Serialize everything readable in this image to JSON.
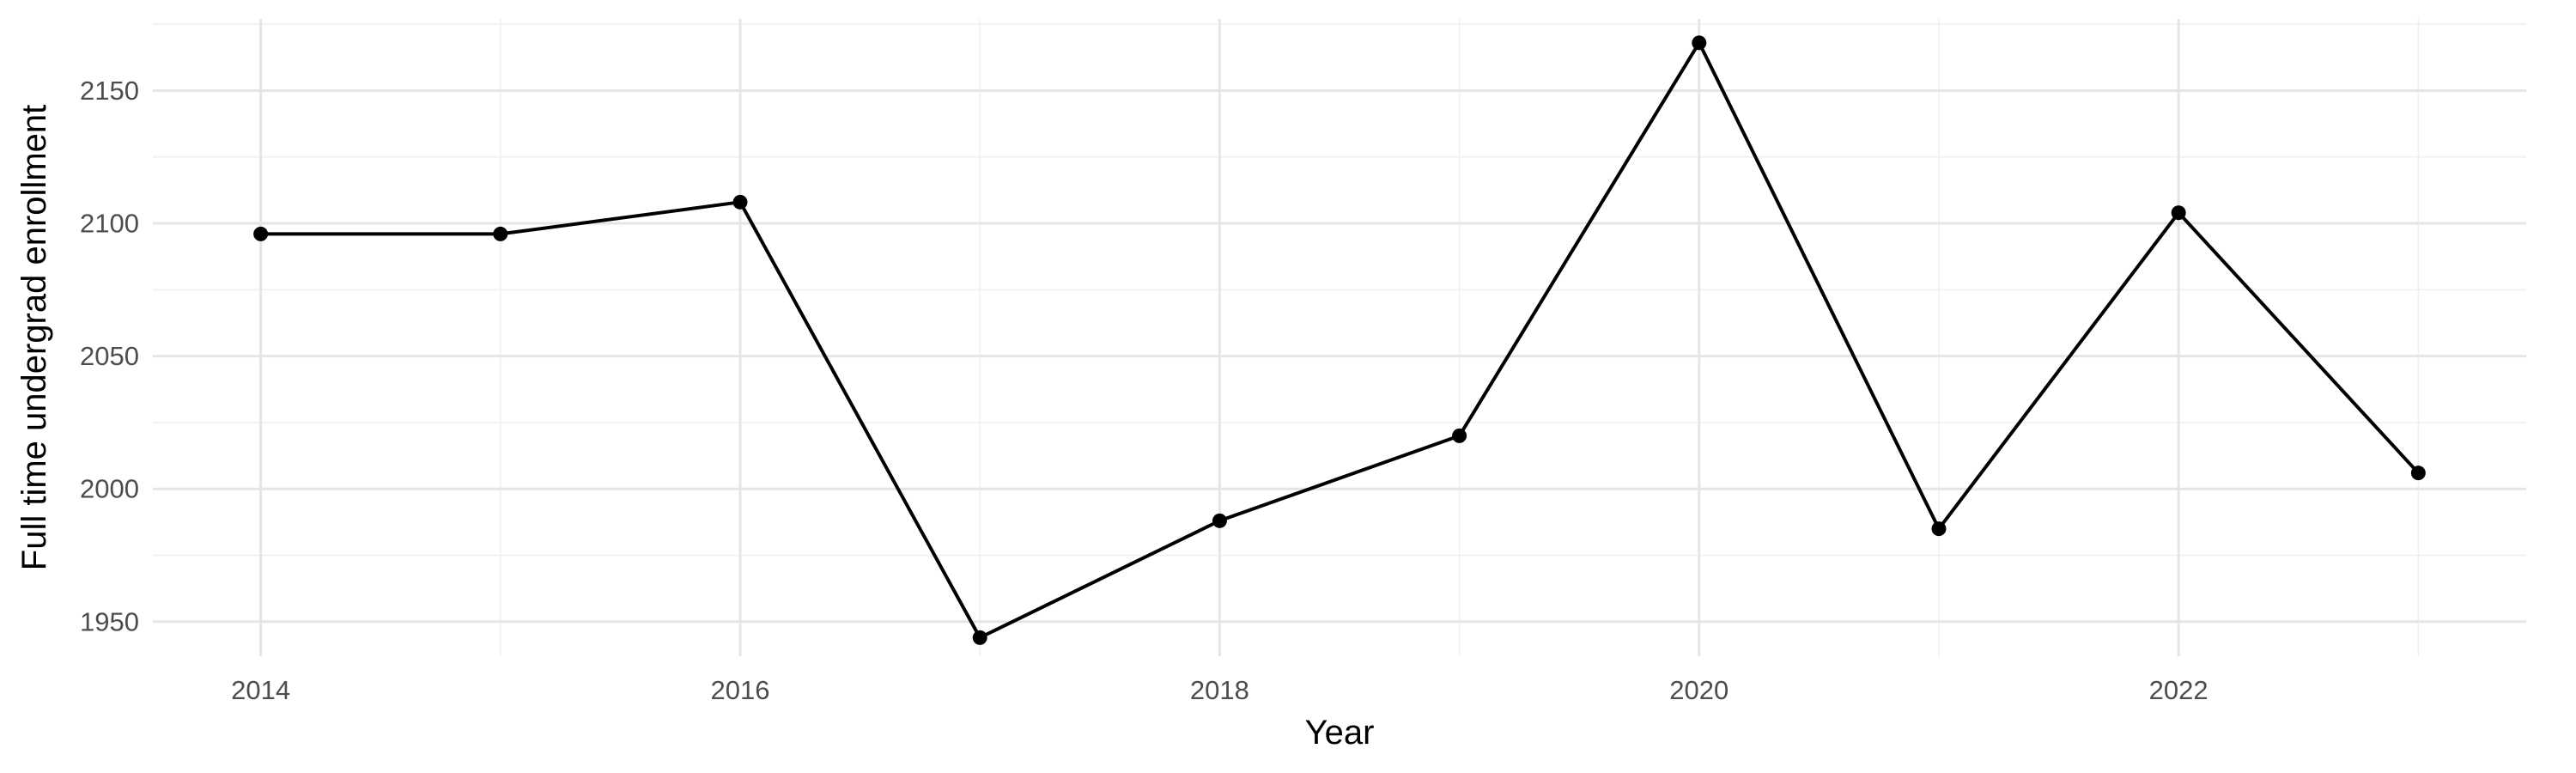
{
  "chart_data": {
    "type": "line",
    "xlabel": "Year",
    "ylabel": "Full time undergrad enrollment",
    "x": [
      2014,
      2015,
      2016,
      2017,
      2018,
      2019,
      2020,
      2021,
      2022,
      2023
    ],
    "series": [
      {
        "values": [
          2096,
          2096,
          2108,
          1944,
          1988,
          2020,
          2168,
          1985,
          2104,
          2006
        ]
      }
    ],
    "xlim": [
      2013.55,
      2023.45
    ],
    "ylim": [
      1937,
      2177
    ],
    "x_major_ticks": [
      2014,
      2016,
      2018,
      2020,
      2022
    ],
    "x_minor_ticks": [
      2015,
      2017,
      2019,
      2021,
      2023
    ],
    "y_major_ticks": [
      1950,
      2000,
      2050,
      2100,
      2150
    ],
    "y_minor_ticks": [
      1975,
      2025,
      2075,
      2125,
      2175
    ],
    "x_tick_labels": [
      "2014",
      "2016",
      "2018",
      "2020",
      "2022"
    ],
    "y_tick_labels": [
      "1950",
      "2000",
      "2050",
      "2100",
      "2150"
    ],
    "grid": true,
    "line_color": "#000000",
    "point_color": "#000000"
  }
}
